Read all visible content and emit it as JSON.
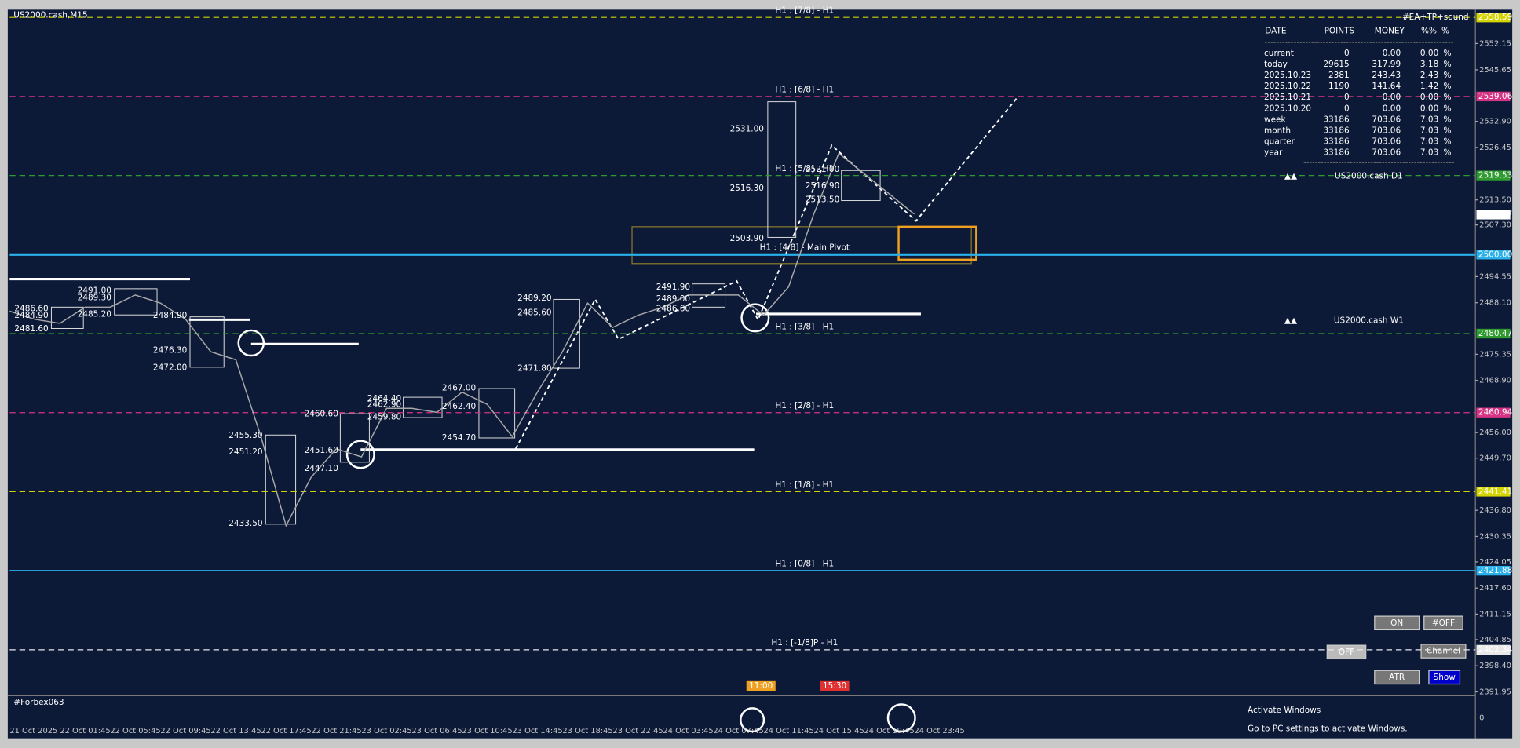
{
  "chart_data": {
    "type": "line",
    "title": "US2000.cash,M15",
    "color": "#a8a8a8",
    "categories": [
      "21 Oct 2025",
      null,
      "22 Oct 01:45",
      null,
      "22 Oct 05:45",
      null,
      "22 Oct 09:45",
      null,
      "22 Oct 13:45",
      null,
      "22 Oct 17:45",
      null,
      "22 Oct 21:45",
      null,
      "23 Oct 02:45",
      null,
      "23 Oct 06:45",
      null,
      "23 Oct 10:45",
      null,
      "23 Oct 14:45",
      null,
      "23 Oct 18:45",
      null,
      "23 Oct 22:45",
      null,
      "24 Oct 03:45",
      null,
      "24 Oct 07:45",
      null,
      "24 Oct 11:45",
      null,
      "24 Oct 15:45",
      null,
      "24 Oct 19:45",
      null,
      "24 Oct 23:45"
    ],
    "values": [
      2486,
      2484,
      2483,
      2487,
      2487,
      2490,
      2488,
      2484,
      2476,
      2474,
      2455,
      2433,
      2445,
      2452,
      2450,
      2462,
      2462,
      2461,
      2466,
      2463,
      2455,
      2466,
      2476,
      2488,
      2482,
      2485,
      2487,
      2490,
      2490,
      2490,
      2485,
      2492,
      2510,
      2525,
      2520,
      2515,
      2510
    ],
    "ylim": [
      2391.0,
      2560.5
    ],
    "yticks": [
      2552.15,
      2545.65,
      {
        "value": 2532.9,
        "label": "2532.90"
      },
      2526.45,
      {
        "value": 2513.5,
        "label": "2513.50"
      },
      {
        "value": 2507.3,
        "label": "2507.30"
      },
      2494.55,
      {
        "value": 2488.1,
        "label": "2488.10"
      },
      2475.35,
      {
        "value": 2468.9,
        "label": "2468.90"
      },
      {
        "value": 2456,
        "label": "2456.00"
      },
      {
        "value": 2449.7,
        "label": "2449.70"
      },
      {
        "value": 2436.8,
        "label": "2436.80"
      },
      2430.35,
      2424.05,
      {
        "value": 2417.6,
        "label": "2417.60"
      },
      2411.15,
      2404.85,
      {
        "value": 2398.4,
        "label": "2398.40"
      },
      2391.95
    ],
    "levels": [
      {
        "name": "H1 : [7/8] - H1",
        "value": 2558.59,
        "color": "#d4d400",
        "style": "dashed"
      },
      {
        "name": "H1 : [6/8] - H1",
        "value": 2539.06,
        "color": "#d63384",
        "style": "dashed"
      },
      {
        "name": "H1 : [5/8] - H1",
        "value": 2519.53,
        "color": "#2f9a2f",
        "style": "dashed"
      },
      {
        "name": "H1 : [4/8] - Main Pivot",
        "value": 2500,
        "value_label": "2500.00",
        "color": "#2ab0ea",
        "style": "thick"
      },
      {
        "name": "H1 : [3/8] - H1",
        "value": 2480.47,
        "color": "#2f9a2f",
        "style": "dashed"
      },
      {
        "name": "H1 : [2/8] - H1",
        "value": 2460.94,
        "color": "#d63384",
        "style": "dashed"
      },
      {
        "name": "H1 : [1/8] - H1",
        "value": 2441.41,
        "color": "#d4d400",
        "style": "dashed"
      },
      {
        "name": "H1 : [0/8] - H1",
        "value": 2421.88,
        "color": "#2ab0ea",
        "style": "solid"
      },
      {
        "name": "H1 : [-1/8]P - H1",
        "value": 2402.34,
        "color": "#e8e8e8",
        "style": "dashed"
      }
    ],
    "current_price": 2509.87,
    "annotations": [
      "2531.00",
      "2516.30",
      "2503.90",
      "2521.00",
      "2516.90",
      "2513.50",
      "2491.00",
      "2489.30",
      "2486.60",
      "2484.90",
      "2485.20",
      "2481.60",
      "2484.90",
      "2476.30",
      "2472.00",
      "2455.30",
      "2451.20",
      "2433.50",
      "2460.60",
      "2451.60",
      "2447.10",
      "2464.40",
      "2462.90",
      "2459.80",
      "2467.00",
      "2462.40",
      "2454.70",
      "2489.20",
      "2485.60",
      "2471.80",
      "2491.90",
      "2489.00",
      "2486.60"
    ],
    "time_marks": [
      "11:00",
      "15:30"
    ]
  },
  "indicator": {
    "name": "#Forbex063",
    "zero_label": "0"
  },
  "panel": {
    "title": "#EA+TP+sound",
    "headers": [
      "DATE",
      "POINTS",
      "MONEY",
      "%%",
      "%"
    ],
    "rows": [
      [
        "current",
        "0",
        "0.00",
        "0.00",
        "%"
      ],
      [
        "today",
        "29615",
        "317.99",
        "3.18",
        "%"
      ],
      [
        "2025.10.23",
        "2381",
        "243.43",
        "2.43",
        "%"
      ],
      [
        "2025.10.22",
        "1190",
        "141.64",
        "1.42",
        "%"
      ],
      [
        "2025.10.21",
        "0",
        "0.00",
        "0.00",
        "%"
      ],
      [
        "2025.10.20",
        "0",
        "0.00",
        "0.00",
        "%"
      ],
      [
        "week",
        "33186",
        "703.06",
        "7.03",
        "%"
      ],
      [
        "month",
        "33186",
        "703.06",
        "7.03",
        "%"
      ],
      [
        "quarter",
        "33186",
        "703.06",
        "7.03",
        "%"
      ],
      [
        "year",
        "33186",
        "703.06",
        "7.03",
        "%"
      ]
    ]
  },
  "mini_charts": [
    "US2000.cash D1",
    "US2000.cash W1"
  ],
  "buttons": [
    "ON",
    "#OFF",
    "OFF",
    "Channel",
    "ATR",
    "Show"
  ],
  "watermark": {
    "title": "Activate Windows",
    "subtitle": "Go to PC settings to activate Windows."
  }
}
